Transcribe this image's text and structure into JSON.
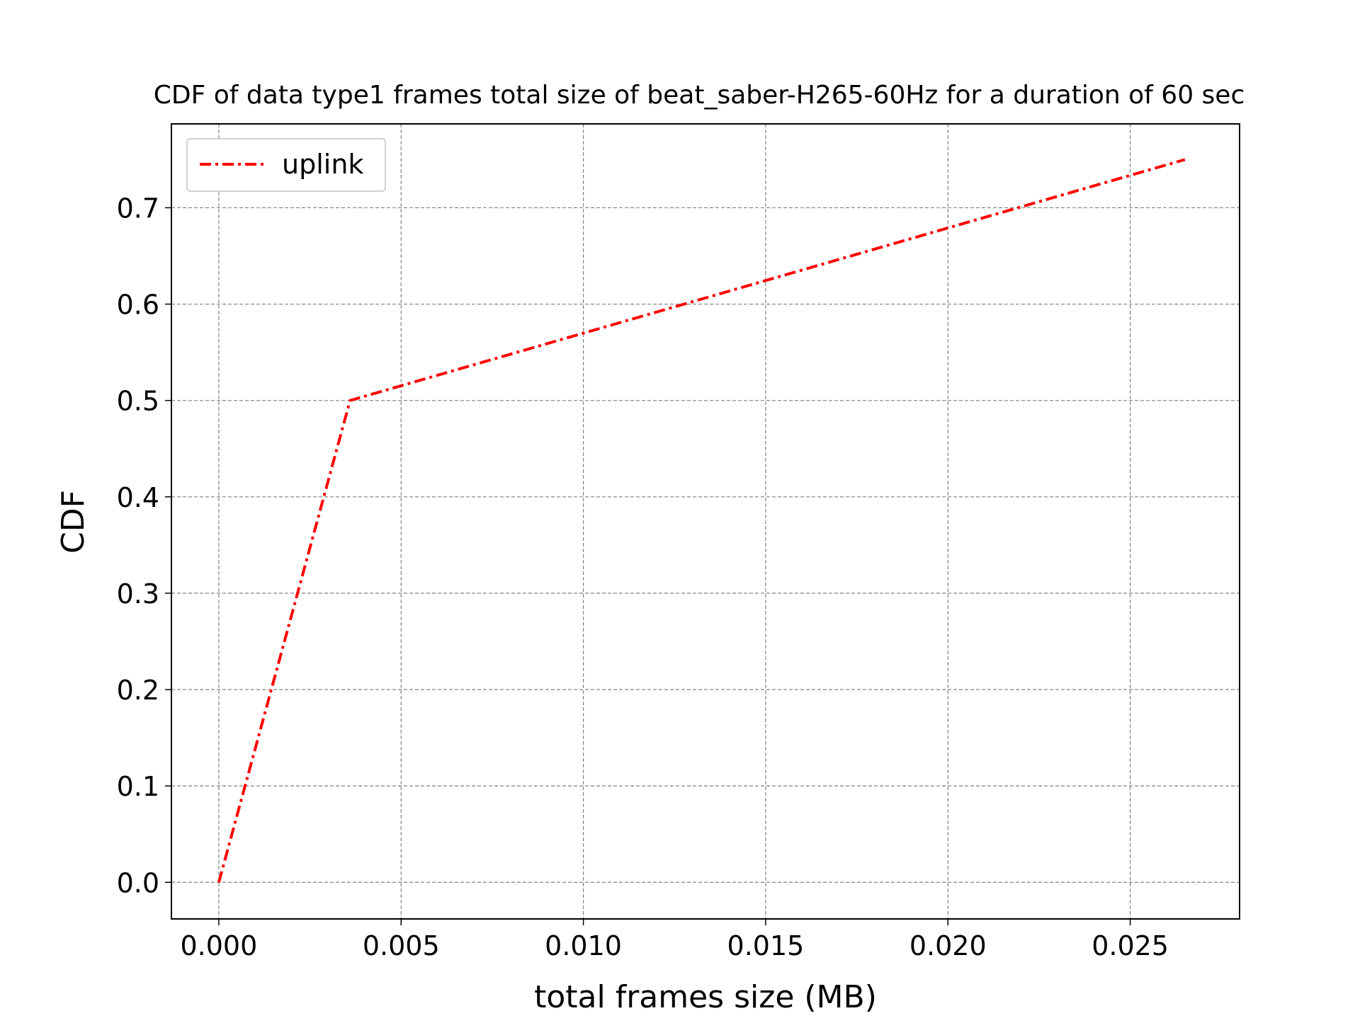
{
  "chart_data": {
    "type": "line",
    "title": "CDF of data type1 frames total size of beat_saber-H265-60Hz for a duration of 60 sec",
    "xlabel": "total frames size (MB)",
    "ylabel": "CDF",
    "xlim": [
      -0.0013,
      0.028
    ],
    "ylim": [
      -0.038,
      0.787
    ],
    "x_ticks": [
      0.0,
      0.005,
      0.01,
      0.015,
      0.02,
      0.025
    ],
    "x_tick_labels": [
      "0.000",
      "0.005",
      "0.010",
      "0.015",
      "0.020",
      "0.025"
    ],
    "y_ticks": [
      0.0,
      0.1,
      0.2,
      0.3,
      0.4,
      0.5,
      0.6,
      0.7
    ],
    "y_tick_labels": [
      "0.0",
      "0.1",
      "0.2",
      "0.3",
      "0.4",
      "0.5",
      "0.6",
      "0.7"
    ],
    "grid": true,
    "legend_position": "upper-left",
    "series": [
      {
        "name": "uplink",
        "color": "#ff0000",
        "line_style": "dashdot",
        "x": [
          0.0,
          0.0036,
          0.0265
        ],
        "y": [
          0.0,
          0.5,
          0.75
        ]
      }
    ]
  }
}
